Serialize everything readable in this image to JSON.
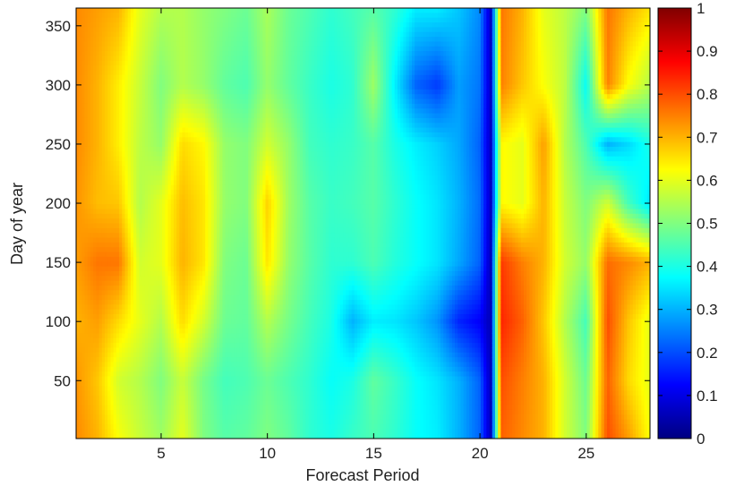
{
  "chart_data": {
    "type": "heatmap",
    "title": "",
    "xlabel": "Forecast Period",
    "ylabel": "Day of year",
    "xlim": [
      1,
      28
    ],
    "ylim": [
      1,
      365
    ],
    "x_ticks": [
      5,
      10,
      15,
      20,
      25
    ],
    "y_ticks": [
      50,
      100,
      150,
      200,
      250,
      300,
      350
    ],
    "colorbar": {
      "colormap": "jet",
      "range": [
        0,
        1
      ],
      "ticks": [
        0,
        0.1,
        0.2,
        0.3,
        0.4,
        0.5,
        0.6,
        0.7,
        0.8,
        0.9,
        1
      ],
      "tick_labels": [
        "0",
        "0.1",
        "0.2",
        "0.3",
        "0.4",
        "0.5",
        "0.6",
        "0.7",
        "0.8",
        "0.9",
        "1"
      ]
    },
    "grid": false,
    "y_grid": [
      1,
      50,
      100,
      150,
      200,
      250,
      300,
      365
    ],
    "column_profiles": [
      {
        "x": 1,
        "values": [
          0.74,
          0.73,
          0.7,
          0.72,
          0.73,
          0.74,
          0.74,
          0.74
        ]
      },
      {
        "x": 2,
        "values": [
          0.7,
          0.68,
          0.72,
          0.76,
          0.69,
          0.7,
          0.7,
          0.72
        ]
      },
      {
        "x": 3,
        "values": [
          0.62,
          0.58,
          0.66,
          0.76,
          0.68,
          0.64,
          0.64,
          0.7
        ]
      },
      {
        "x": 4,
        "values": [
          0.57,
          0.55,
          0.6,
          0.58,
          0.55,
          0.56,
          0.57,
          0.6
        ]
      },
      {
        "x": 5,
        "values": [
          0.53,
          0.5,
          0.55,
          0.6,
          0.6,
          0.52,
          0.5,
          0.55
        ]
      },
      {
        "x": 6,
        "values": [
          0.6,
          0.57,
          0.66,
          0.7,
          0.69,
          0.66,
          0.55,
          0.55
        ]
      },
      {
        "x": 7,
        "values": [
          0.5,
          0.49,
          0.58,
          0.65,
          0.65,
          0.63,
          0.52,
          0.52
        ]
      },
      {
        "x": 8,
        "values": [
          0.46,
          0.44,
          0.48,
          0.5,
          0.52,
          0.52,
          0.47,
          0.5
        ]
      },
      {
        "x": 9,
        "values": [
          0.47,
          0.45,
          0.47,
          0.48,
          0.5,
          0.5,
          0.45,
          0.48
        ]
      },
      {
        "x": 10,
        "values": [
          0.5,
          0.48,
          0.55,
          0.65,
          0.67,
          0.58,
          0.52,
          0.54
        ]
      },
      {
        "x": 11,
        "values": [
          0.47,
          0.45,
          0.49,
          0.52,
          0.53,
          0.52,
          0.47,
          0.48
        ]
      },
      {
        "x": 12,
        "values": [
          0.42,
          0.42,
          0.44,
          0.46,
          0.46,
          0.44,
          0.43,
          0.45
        ]
      },
      {
        "x": 13,
        "values": [
          0.4,
          0.38,
          0.4,
          0.42,
          0.43,
          0.42,
          0.4,
          0.42
        ]
      },
      {
        "x": 14,
        "values": [
          0.43,
          0.4,
          0.3,
          0.42,
          0.44,
          0.43,
          0.42,
          0.44
        ]
      },
      {
        "x": 15,
        "values": [
          0.45,
          0.47,
          0.36,
          0.45,
          0.46,
          0.46,
          0.53,
          0.46
        ]
      },
      {
        "x": 16,
        "values": [
          0.42,
          0.43,
          0.35,
          0.41,
          0.42,
          0.4,
          0.36,
          0.42
        ]
      },
      {
        "x": 17,
        "values": [
          0.38,
          0.38,
          0.32,
          0.38,
          0.38,
          0.36,
          0.22,
          0.36
        ]
      },
      {
        "x": 18,
        "values": [
          0.36,
          0.35,
          0.27,
          0.35,
          0.35,
          0.33,
          0.18,
          0.36
        ]
      },
      {
        "x": 19,
        "values": [
          0.3,
          0.3,
          0.16,
          0.29,
          0.3,
          0.29,
          0.28,
          0.32
        ]
      },
      {
        "x": 20,
        "values": [
          0.22,
          0.22,
          0.12,
          0.22,
          0.23,
          0.22,
          0.24,
          0.26
        ]
      },
      {
        "x": 20.5,
        "values": [
          0.05,
          0.05,
          0.05,
          0.05,
          0.06,
          0.06,
          0.06,
          0.06
        ]
      },
      {
        "x": 21,
        "values": [
          0.78,
          0.8,
          0.84,
          0.82,
          0.63,
          0.63,
          0.75,
          0.76
        ]
      },
      {
        "x": 22,
        "values": [
          0.74,
          0.75,
          0.78,
          0.75,
          0.6,
          0.6,
          0.68,
          0.7
        ]
      },
      {
        "x": 23,
        "values": [
          0.7,
          0.7,
          0.68,
          0.7,
          0.7,
          0.72,
          0.62,
          0.6
        ]
      },
      {
        "x": 24,
        "values": [
          0.58,
          0.58,
          0.55,
          0.58,
          0.57,
          0.55,
          0.56,
          0.56
        ]
      },
      {
        "x": 25,
        "values": [
          0.5,
          0.48,
          0.44,
          0.52,
          0.5,
          0.45,
          0.38,
          0.5
        ]
      },
      {
        "x": 26,
        "values": [
          0.8,
          0.78,
          0.8,
          0.77,
          0.58,
          0.3,
          0.75,
          0.76
        ]
      },
      {
        "x": 27,
        "values": [
          0.72,
          0.66,
          0.68,
          0.74,
          0.44,
          0.34,
          0.62,
          0.7
        ]
      },
      {
        "x": 28,
        "values": [
          0.62,
          0.6,
          0.6,
          0.7,
          0.35,
          0.4,
          0.55,
          0.65
        ]
      }
    ]
  }
}
